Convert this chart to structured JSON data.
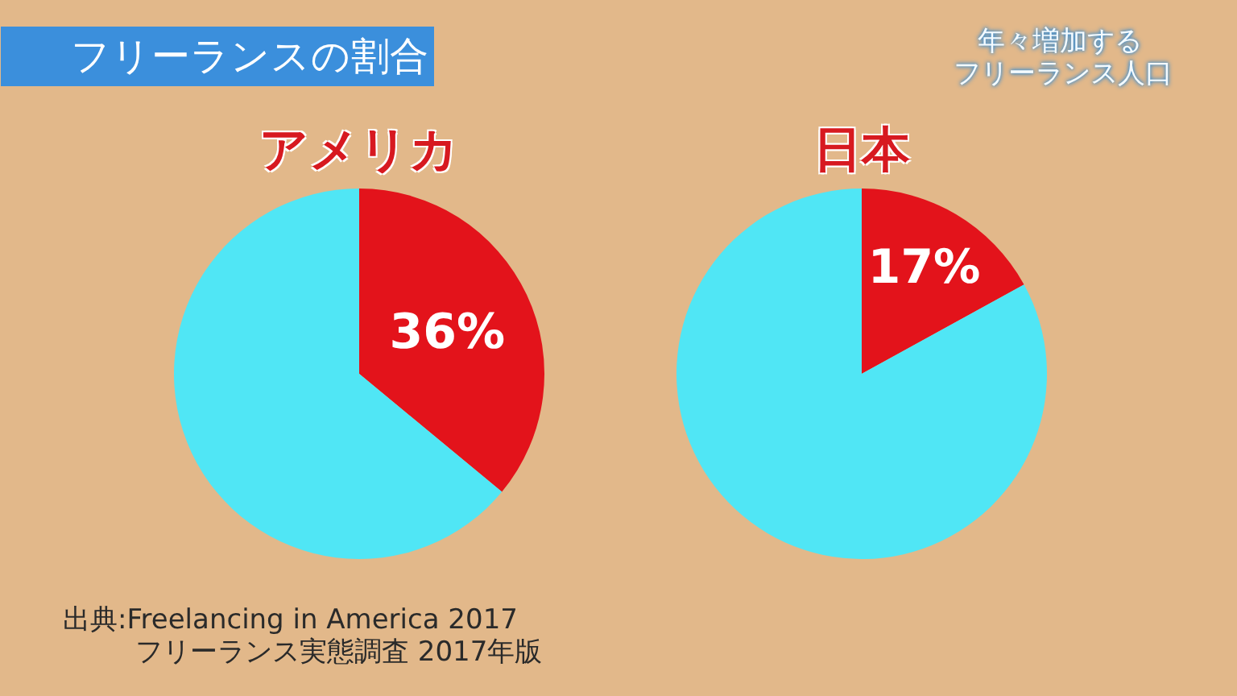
{
  "chart_data": [
    {
      "type": "other",
      "title": "フリーランスの割合",
      "annotations": [
        "年々増加する",
        "フリーランス人口",
        "出典:Freelancing in America 2017",
        "フリーランス実態調査 2017年版"
      ]
    },
    {
      "type": "pie",
      "title": "アメリカ",
      "categories": [
        null,
        null
      ],
      "values": [
        36,
        64
      ],
      "colors": [
        "#e3131b",
        "#50e6f5"
      ],
      "value_labels": [
        "36%",
        null
      ]
    },
    {
      "type": "pie",
      "title": "日本",
      "categories": [
        null,
        null
      ],
      "values": [
        17,
        83
      ],
      "colors": [
        "#e3131b",
        "#50e6f5"
      ],
      "value_labels": [
        "17%",
        null
      ]
    }
  ]
}
